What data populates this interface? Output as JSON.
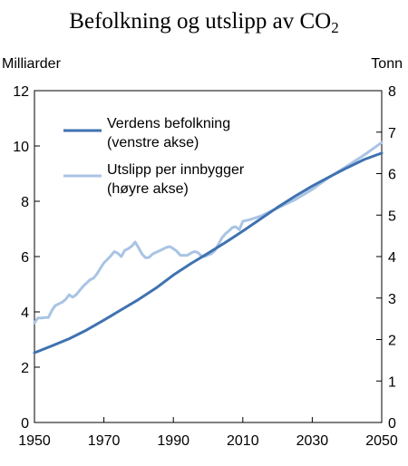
{
  "title": {
    "main": "Befolkning og utslipp av CO",
    "sub": "2"
  },
  "chart_data": {
    "type": "line",
    "title": "Befolkning og utslipp av CO2",
    "ylabel_left": "Milliarder",
    "ylabel_right": "Tonn",
    "xlim": [
      1950,
      2050
    ],
    "ylim_left": [
      0,
      12
    ],
    "ylim_right": [
      0,
      8
    ],
    "x_ticks": [
      1950,
      1970,
      1990,
      2010,
      2030,
      2050
    ],
    "y_ticks_left": [
      0,
      2,
      4,
      6,
      8,
      10,
      12
    ],
    "y_ticks_right": [
      0,
      1,
      2,
      3,
      4,
      5,
      6,
      7,
      8
    ],
    "grid": false,
    "legend_position": "top-left",
    "series": [
      {
        "name": "Verdens befolkning",
        "name_line2": "(venstre akse)",
        "axis": "left",
        "color": "#3f72b0",
        "x": [
          1950,
          1955,
          1960,
          1965,
          1970,
          1975,
          1980,
          1985,
          1990,
          1995,
          2000,
          2005,
          2010,
          2015,
          2020,
          2025,
          2030,
          2035,
          2040,
          2045,
          2050
        ],
        "y": [
          2.52,
          2.77,
          3.03,
          3.34,
          3.7,
          4.08,
          4.45,
          4.86,
          5.33,
          5.74,
          6.12,
          6.51,
          6.92,
          7.35,
          7.78,
          8.18,
          8.55,
          8.89,
          9.21,
          9.51,
          9.74
        ]
      },
      {
        "name": "Utslipp per innbygger",
        "name_line2": "(høyre akse)",
        "axis": "right",
        "color": "#a9c4e4",
        "x": [
          1950,
          1951,
          1952,
          1953,
          1954,
          1955,
          1956,
          1957,
          1958,
          1959,
          1960,
          1961,
          1962,
          1963,
          1964,
          1965,
          1966,
          1967,
          1968,
          1969,
          1970,
          1971,
          1972,
          1973,
          1974,
          1975,
          1976,
          1977,
          1978,
          1979,
          1980,
          1981,
          1982,
          1983,
          1984,
          1985,
          1986,
          1987,
          1988,
          1989,
          1990,
          1991,
          1992,
          1993,
          1994,
          1995,
          1996,
          1997,
          1998,
          1999,
          2000,
          2001,
          2002,
          2003,
          2004,
          2005,
          2006,
          2007,
          2008,
          2009,
          2010,
          2012,
          2015,
          2020,
          2025,
          2030,
          2035,
          2040,
          2045,
          2050
        ],
        "y": [
          2.4,
          2.52,
          2.52,
          2.53,
          2.53,
          2.7,
          2.82,
          2.86,
          2.9,
          2.97,
          3.08,
          3.02,
          3.08,
          3.18,
          3.28,
          3.36,
          3.44,
          3.48,
          3.58,
          3.72,
          3.85,
          3.93,
          4.02,
          4.12,
          4.08,
          4.0,
          4.15,
          4.19,
          4.25,
          4.35,
          4.21,
          4.06,
          3.97,
          3.98,
          4.06,
          4.1,
          4.14,
          4.18,
          4.22,
          4.24,
          4.19,
          4.13,
          4.03,
          4.03,
          4.03,
          4.08,
          4.12,
          4.1,
          4.02,
          4.0,
          4.04,
          4.07,
          4.15,
          4.3,
          4.45,
          4.55,
          4.62,
          4.7,
          4.72,
          4.65,
          4.85,
          4.89,
          4.97,
          5.17,
          5.37,
          5.62,
          5.92,
          6.18,
          6.45,
          6.75
        ]
      }
    ]
  }
}
